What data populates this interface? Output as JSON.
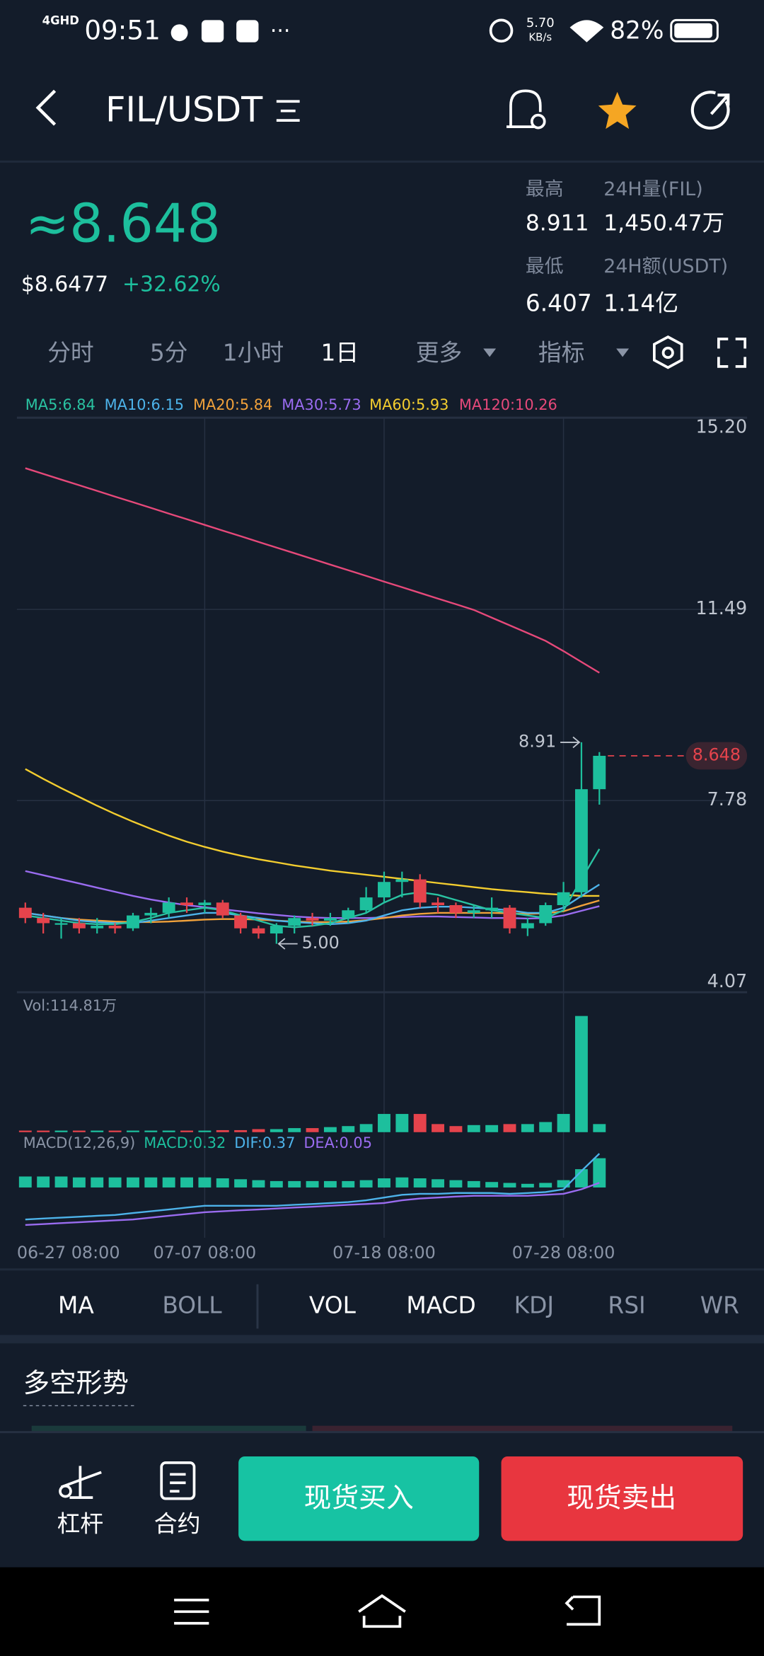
{
  "status_bar": {
    "network": "4GHD",
    "time": "09:51",
    "speed": "5.70",
    "speed_unit": "KB/s",
    "battery": "82%"
  },
  "header": {
    "title": "FIL/USDT"
  },
  "price": {
    "last": "≈8.648",
    "usd": "$8.6477",
    "change": "+32.62%"
  },
  "stats": {
    "high_label": "最高",
    "high": "8.911",
    "volume_label": "24H量(FIL)",
    "volume": "1,450.47万",
    "low_label": "最低",
    "low": "6.407",
    "amount_label": "24H额(USDT)",
    "amount": "1.14亿"
  },
  "tabs": [
    "分时",
    "5分",
    "1小时",
    "1日",
    "更多",
    "指标"
  ],
  "indicator_tabs": [
    "MA",
    "BOLL",
    "VOL",
    "MACD",
    "KDJ",
    "RSI",
    "WR"
  ],
  "section_title": "多空形势",
  "bottom_bar": {
    "lever": "杠杆",
    "contract": "合约",
    "buy": "现货买入",
    "sell": "现货卖出"
  },
  "chart_data": {
    "type": "candlestick",
    "categories": [
      "06-27 08:00",
      null,
      null,
      null,
      null,
      null,
      null,
      null,
      null,
      null,
      "07-07 08:00",
      null,
      null,
      null,
      null,
      null,
      null,
      null,
      null,
      null,
      "07-18 08:00",
      null,
      null,
      null,
      null,
      null,
      null,
      null,
      null,
      null,
      "07-28 08:00",
      null,
      null
    ],
    "open": [
      5.7,
      5.5,
      5.4,
      5.4,
      5.3,
      5.35,
      5.3,
      5.55,
      5.6,
      5.8,
      5.75,
      5.8,
      5.55,
      5.3,
      5.2,
      5.35,
      5.5,
      5.45,
      5.5,
      5.65,
      5.9,
      6.2,
      6.25,
      5.8,
      5.75,
      5.6,
      5.65,
      5.7,
      5.3,
      5.4,
      5.75,
      6.0,
      8.0
    ],
    "high": [
      5.8,
      5.6,
      5.5,
      5.5,
      5.5,
      5.4,
      5.6,
      5.7,
      5.9,
      5.9,
      5.85,
      5.85,
      5.6,
      5.35,
      5.4,
      5.55,
      5.6,
      5.6,
      5.7,
      6.1,
      6.4,
      6.4,
      6.35,
      5.9,
      5.8,
      5.75,
      5.9,
      5.75,
      5.5,
      5.8,
      6.2,
      8.911,
      8.72
    ],
    "low": [
      5.4,
      5.2,
      5.1,
      5.2,
      5.2,
      5.2,
      5.25,
      5.4,
      5.5,
      5.6,
      5.6,
      5.5,
      5.2,
      5.1,
      5.0,
      5.2,
      5.35,
      5.35,
      5.4,
      5.6,
      5.8,
      5.9,
      5.7,
      5.6,
      5.5,
      5.5,
      5.5,
      5.2,
      5.15,
      5.35,
      5.7,
      5.9,
      7.7
    ],
    "close": [
      5.5,
      5.4,
      5.4,
      5.3,
      5.35,
      5.3,
      5.55,
      5.6,
      5.8,
      5.75,
      5.8,
      5.55,
      5.3,
      5.2,
      5.35,
      5.5,
      5.45,
      5.5,
      5.65,
      5.9,
      6.2,
      6.25,
      5.8,
      5.75,
      5.6,
      5.65,
      5.7,
      5.3,
      5.4,
      5.75,
      6.0,
      8.0,
      8.648
    ],
    "up_color": "#1dbf9d",
    "down_color": "#e5434c",
    "ylim": [
      4.07,
      15.2
    ],
    "yticks": [
      {
        "value": 15.2,
        "label": "15.20"
      },
      11.49,
      7.78,
      4.07
    ],
    "grid": true,
    "ma": [
      {
        "name": "MA5:6.84",
        "color": "#2ac3a2",
        "values": [
          5.55,
          5.5,
          5.45,
          5.4,
          5.38,
          5.38,
          5.42,
          5.5,
          5.6,
          5.65,
          5.7,
          5.65,
          5.55,
          5.45,
          5.35,
          5.32,
          5.35,
          5.4,
          5.5,
          5.6,
          5.8,
          5.95,
          6.0,
          5.95,
          5.85,
          5.75,
          5.65,
          5.6,
          5.55,
          5.5,
          5.65,
          6.25,
          6.84
        ]
      },
      {
        "name": "MA10:6.15",
        "color": "#4db3ea",
        "values": [
          5.6,
          5.55,
          5.5,
          5.45,
          5.42,
          5.4,
          5.4,
          5.45,
          5.5,
          5.55,
          5.6,
          5.6,
          5.55,
          5.5,
          5.45,
          5.42,
          5.4,
          5.38,
          5.4,
          5.45,
          5.55,
          5.65,
          5.7,
          5.72,
          5.72,
          5.7,
          5.68,
          5.65,
          5.6,
          5.6,
          5.7,
          5.93,
          6.15
        ]
      },
      {
        "name": "MA20:5.84",
        "color": "#f0a13b",
        "values": [
          5.6,
          5.55,
          5.5,
          5.47,
          5.45,
          5.43,
          5.42,
          5.42,
          5.43,
          5.45,
          5.47,
          5.48,
          5.48,
          5.47,
          5.45,
          5.43,
          5.42,
          5.42,
          5.43,
          5.46,
          5.5,
          5.55,
          5.58,
          5.6,
          5.6,
          5.6,
          5.6,
          5.59,
          5.58,
          5.59,
          5.63,
          5.74,
          5.84
        ]
      },
      {
        "name": "MA30:5.73",
        "color": "#9a6cf0",
        "values": [
          6.41,
          6.33,
          6.25,
          6.17,
          6.09,
          6.01,
          5.93,
          5.86,
          5.8,
          5.75,
          5.71,
          5.67,
          5.63,
          5.59,
          5.56,
          5.53,
          5.51,
          5.5,
          5.5,
          5.5,
          5.51,
          5.52,
          5.53,
          5.53,
          5.52,
          5.51,
          5.5,
          5.5,
          5.49,
          5.5,
          5.55,
          5.64,
          5.73
        ]
      },
      {
        "name": "MA60:5.93",
        "color": "#f3cd2f",
        "values": [
          8.39,
          8.2,
          8.02,
          7.85,
          7.68,
          7.52,
          7.37,
          7.23,
          7.1,
          6.98,
          6.88,
          6.79,
          6.71,
          6.64,
          6.58,
          6.52,
          6.47,
          6.42,
          6.38,
          6.34,
          6.3,
          6.26,
          6.22,
          6.18,
          6.14,
          6.1,
          6.06,
          6.03,
          6.0,
          5.97,
          5.95,
          5.93,
          5.93
        ]
      },
      {
        "name": "MA120:10.26",
        "color": "#e6497a",
        "values": [
          14.23,
          14.12,
          14.01,
          13.9,
          13.79,
          13.68,
          13.57,
          13.46,
          13.35,
          13.24,
          13.13,
          13.02,
          12.91,
          12.8,
          12.69,
          12.58,
          12.47,
          12.36,
          12.25,
          12.14,
          12.03,
          11.92,
          11.81,
          11.7,
          11.59,
          11.48,
          11.33,
          11.18,
          11.03,
          10.88,
          10.68,
          10.47,
          10.26
        ]
      }
    ],
    "high_annotation": 8.91,
    "low_annotation": {
      "value": 5,
      "label": "5.00"
    },
    "last_price": 8.648,
    "volume": {
      "label": "Vol:114.81万",
      "values": [
        1,
        1,
        1,
        1,
        1,
        1,
        1,
        1,
        1,
        1,
        1,
        2,
        2,
        3,
        3,
        4,
        4,
        5,
        6,
        8,
        18,
        18,
        18,
        8,
        6,
        7,
        7,
        8,
        8,
        10,
        18,
        114.81,
        8
      ]
    },
    "macd": {
      "labels": [
        {
          "text": "MACD(12,26,9)",
          "color": "#8a94a6"
        },
        {
          "text": "MACD:0.32",
          "color": "#1dbf9d"
        },
        {
          "text": "DIF:0.37",
          "color": "#4db3ea"
        },
        {
          "text": "DEA:0.05",
          "color": "#9a6cf0"
        }
      ],
      "ylim": [
        -0.55,
        0.42
      ],
      "bars": [
        0.12,
        0.12,
        0.12,
        0.11,
        0.11,
        0.11,
        0.11,
        0.11,
        0.11,
        0.11,
        0.11,
        0.1,
        0.09,
        0.08,
        0.07,
        0.07,
        0.07,
        0.07,
        0.07,
        0.08,
        0.1,
        0.11,
        0.1,
        0.09,
        0.08,
        0.07,
        0.06,
        0.05,
        0.04,
        0.05,
        0.08,
        0.2,
        0.32
      ],
      "dif": {
        "color": "#4db3ea",
        "values": [
          -0.35,
          -0.34,
          -0.33,
          -0.32,
          -0.31,
          -0.3,
          -0.28,
          -0.26,
          -0.24,
          -0.22,
          -0.2,
          -0.2,
          -0.2,
          -0.2,
          -0.2,
          -0.19,
          -0.18,
          -0.17,
          -0.16,
          -0.14,
          -0.11,
          -0.08,
          -0.07,
          -0.07,
          -0.06,
          -0.06,
          -0.06,
          -0.07,
          -0.06,
          -0.05,
          -0.02,
          0.18,
          0.37
        ]
      },
      "dea": {
        "color": "#9a6cf0",
        "values": [
          -0.41,
          -0.4,
          -0.39,
          -0.38,
          -0.37,
          -0.36,
          -0.35,
          -0.33,
          -0.31,
          -0.29,
          -0.27,
          -0.26,
          -0.25,
          -0.24,
          -0.23,
          -0.22,
          -0.21,
          -0.2,
          -0.19,
          -0.18,
          -0.17,
          -0.14,
          -0.12,
          -0.11,
          -0.1,
          -0.09,
          -0.09,
          -0.09,
          -0.09,
          -0.08,
          -0.07,
          -0.02,
          0.05
        ]
      }
    }
  }
}
